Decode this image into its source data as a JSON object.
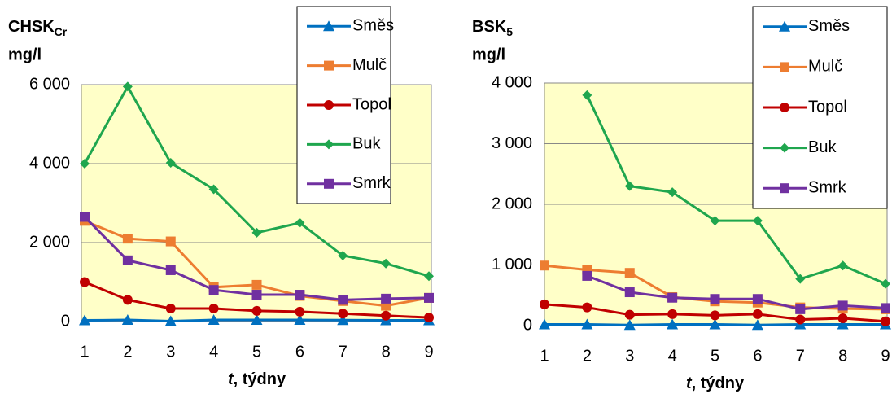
{
  "chart_data": [
    {
      "type": "line",
      "ylabel": {
        "main": "CHSK",
        "sub": "Cr",
        "unit": "mg/l"
      },
      "xlabel": {
        "var": "t",
        "rest": ", týdny"
      },
      "categories": [
        "1",
        "2",
        "3",
        "4",
        "5",
        "6",
        "7",
        "8",
        "9"
      ],
      "ylim": [
        0,
        6000
      ],
      "yticks": [
        0,
        {
          "value": 2000,
          "label": "2 000"
        },
        {
          "value": 4000,
          "label": "4 000"
        },
        {
          "value": 6000,
          "label": "6 000"
        }
      ],
      "grid": true,
      "series": [
        {
          "name": "Směs",
          "color": "#0070c0",
          "marker": "triangle",
          "values": [
            30,
            40,
            10,
            40,
            40,
            40,
            35,
            30,
            30
          ]
        },
        {
          "name": "Mulč",
          "color": "#ed7d31",
          "marker": "square",
          "values": [
            2550,
            2100,
            2030,
            870,
            930,
            650,
            520,
            400,
            600
          ]
        },
        {
          "name": "Topol",
          "color": "#c00000",
          "marker": "circle",
          "values": [
            1000,
            550,
            330,
            330,
            270,
            250,
            200,
            150,
            100
          ]
        },
        {
          "name": "Buk",
          "color": "#1fa64e",
          "marker": "diamond",
          "values": [
            4000,
            5950,
            4020,
            3350,
            2250,
            2500,
            1670,
            1470,
            1150
          ]
        },
        {
          "name": "Smrk",
          "color": "#7030a0",
          "marker": "square",
          "values": [
            2650,
            1550,
            1300,
            800,
            680,
            680,
            550,
            580,
            600
          ]
        }
      ]
    },
    {
      "type": "line",
      "ylabel": {
        "main": "BSK",
        "sub": "5",
        "unit": "mg/l"
      },
      "xlabel": {
        "var": "t",
        "rest": ", týdny"
      },
      "categories": [
        "1",
        "2",
        "3",
        "4",
        "5",
        "6",
        "7",
        "8",
        "9"
      ],
      "ylim": [
        0,
        4000
      ],
      "yticks": [
        0,
        {
          "value": 1000,
          "label": "1 000"
        },
        {
          "value": 2000,
          "label": "2 000"
        },
        {
          "value": 3000,
          "label": "3 000"
        },
        {
          "value": 4000,
          "label": "4 000"
        }
      ],
      "grid": true,
      "series": [
        {
          "name": "Směs",
          "color": "#0070c0",
          "marker": "triangle",
          "values": [
            20,
            20,
            10,
            20,
            20,
            10,
            20,
            20,
            20
          ]
        },
        {
          "name": "Mulč",
          "color": "#ed7d31",
          "marker": "square",
          "values": [
            990,
            920,
            870,
            470,
            400,
            380,
            300,
            280,
            270
          ]
        },
        {
          "name": "Topol",
          "color": "#c00000",
          "marker": "circle",
          "values": [
            350,
            300,
            180,
            190,
            170,
            190,
            100,
            120,
            70
          ]
        },
        {
          "name": "Buk",
          "color": "#1fa64e",
          "marker": "diamond",
          "values": [
            null,
            3800,
            2300,
            2200,
            1730,
            1730,
            770,
            990,
            690
          ]
        },
        {
          "name": "Smrk",
          "color": "#7030a0",
          "marker": "square",
          "values": [
            null,
            820,
            550,
            460,
            440,
            440,
            270,
            330,
            290
          ]
        }
      ]
    }
  ]
}
